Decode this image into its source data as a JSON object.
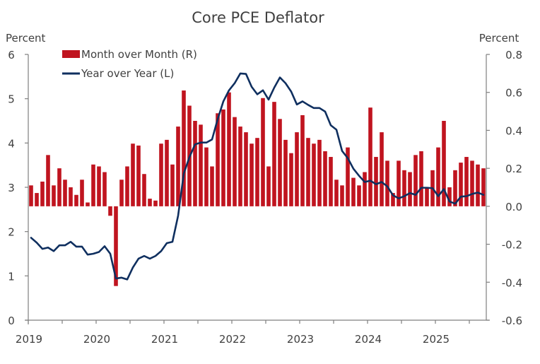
{
  "chart_data": {
    "type": "bar+line",
    "title": "Core PCE Deflator",
    "left_axis": {
      "label": "Percent",
      "range": [
        0,
        6
      ],
      "ticks": [
        0,
        1,
        2,
        3,
        4,
        5,
        6
      ],
      "tick_labels": [
        "0",
        "1",
        "2",
        "3",
        "4",
        "5",
        "6"
      ]
    },
    "right_axis": {
      "label": "Percent",
      "range": [
        -0.6,
        0.8
      ],
      "ticks": [
        -0.6,
        -0.4,
        -0.2,
        0.0,
        0.2,
        0.4,
        0.6,
        0.8
      ],
      "tick_labels": [
        "-0.6",
        "-0.4",
        "-0.2",
        "0.0",
        "0.2",
        "0.4",
        "0.6",
        "0.8"
      ]
    },
    "x_axis": {
      "labels": [
        "2019",
        "2020",
        "2021",
        "2022",
        "2023",
        "2024",
        "2025"
      ],
      "start": "2019-01",
      "frequency": "monthly"
    },
    "grid": false,
    "legend": {
      "placement": "top-left",
      "entries": [
        "Month over Month (R)",
        "Year over Year (L)"
      ]
    },
    "colors": {
      "mom": "#c0141f",
      "yoy": "#0f2f5f"
    },
    "series": [
      {
        "name": "Month over Month (R)",
        "type": "bar",
        "axis": "right",
        "values": [
          0.11,
          0.07,
          0.13,
          0.27,
          0.11,
          0.2,
          0.14,
          0.1,
          0.06,
          0.14,
          0.02,
          0.22,
          0.21,
          0.18,
          -0.05,
          -0.42,
          0.14,
          0.21,
          0.33,
          0.32,
          0.17,
          0.04,
          0.03,
          0.33,
          0.35,
          0.22,
          0.42,
          0.61,
          0.53,
          0.45,
          0.43,
          0.31,
          0.21,
          0.49,
          0.51,
          0.6,
          0.47,
          0.42,
          0.39,
          0.33,
          0.36,
          0.57,
          0.21,
          0.55,
          0.46,
          0.35,
          0.28,
          0.39,
          0.48,
          0.36,
          0.33,
          0.35,
          0.29,
          0.26,
          0.14,
          0.11,
          0.31,
          0.15,
          0.11,
          0.18,
          0.52,
          0.26,
          0.39,
          0.24,
          0.07,
          0.24,
          0.19,
          0.18,
          0.27,
          0.29,
          0.1,
          0.19,
          0.31,
          0.45,
          0.1,
          0.19,
          0.23,
          0.26,
          0.24,
          0.22,
          0.2
        ]
      },
      {
        "name": "Year over Year (L)",
        "type": "line",
        "axis": "left",
        "values": [
          1.86,
          1.75,
          1.61,
          1.64,
          1.56,
          1.69,
          1.69,
          1.77,
          1.66,
          1.66,
          1.48,
          1.5,
          1.54,
          1.67,
          1.5,
          0.94,
          0.96,
          0.92,
          1.19,
          1.39,
          1.45,
          1.39,
          1.45,
          1.56,
          1.74,
          1.77,
          2.36,
          3.31,
          3.68,
          3.97,
          4.01,
          4.01,
          4.08,
          4.54,
          4.94,
          5.19,
          5.35,
          5.57,
          5.56,
          5.27,
          5.1,
          5.19,
          4.98,
          5.25,
          5.48,
          5.35,
          5.16,
          4.87,
          4.94,
          4.86,
          4.79,
          4.79,
          4.71,
          4.4,
          4.3,
          3.82,
          3.66,
          3.42,
          3.26,
          3.12,
          3.15,
          3.07,
          3.12,
          3.02,
          2.82,
          2.75,
          2.8,
          2.87,
          2.83,
          2.99,
          2.99,
          2.98,
          2.8,
          2.96,
          2.68,
          2.63,
          2.79,
          2.8,
          2.85,
          2.88,
          2.83
        ]
      }
    ]
  }
}
